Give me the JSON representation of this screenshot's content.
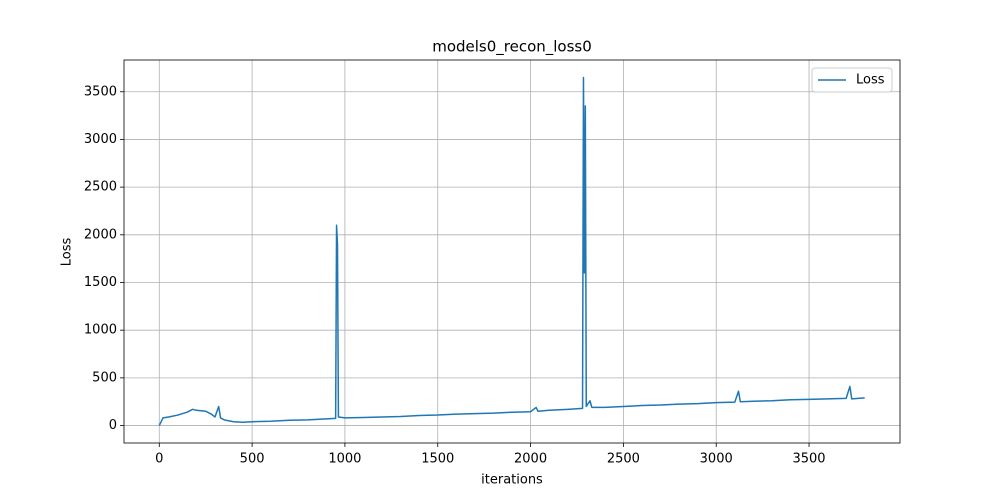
{
  "chart_data": {
    "type": "line",
    "title": "models0_recon_loss0",
    "x_label": "iterations",
    "y_label": "Loss",
    "grid": true,
    "legend": "upper right",
    "x": [
      0,
      20,
      50,
      100,
      150,
      180,
      200,
      250,
      280,
      300,
      320,
      330,
      350,
      400,
      450,
      500,
      600,
      700,
      800,
      900,
      950,
      955,
      960,
      965,
      1000,
      1100,
      1200,
      1300,
      1400,
      1500,
      1600,
      1700,
      1800,
      1900,
      2000,
      2030,
      2040,
      2100,
      2200,
      2280,
      2285,
      2290,
      2295,
      2300,
      2320,
      2330,
      2400,
      2500,
      2600,
      2700,
      2800,
      2900,
      3000,
      3100,
      3120,
      3130,
      3200,
      3300,
      3400,
      3500,
      3600,
      3700,
      3720,
      3730,
      3800
    ],
    "series": [
      {
        "name": "Loss",
        "color": "#1f77b4",
        "values": [
          0,
          80,
          90,
          110,
          140,
          170,
          160,
          150,
          120,
          90,
          200,
          80,
          60,
          40,
          35,
          40,
          45,
          55,
          60,
          70,
          75,
          2100,
          1900,
          90,
          80,
          85,
          90,
          95,
          105,
          110,
          120,
          125,
          130,
          140,
          145,
          190,
          150,
          160,
          170,
          180,
          3650,
          1600,
          3350,
          200,
          260,
          190,
          190,
          200,
          210,
          215,
          225,
          230,
          240,
          245,
          360,
          250,
          255,
          260,
          270,
          275,
          280,
          285,
          410,
          280,
          290
        ]
      }
    ],
    "xlim": [
      -190,
      3990
    ],
    "ylim": [
      -183,
      3833
    ],
    "xticks": [
      0,
      500,
      1000,
      1500,
      2000,
      2500,
      3000,
      3500
    ],
    "yticks": [
      0,
      500,
      1000,
      1500,
      2000,
      2500,
      3000,
      3500
    ]
  }
}
